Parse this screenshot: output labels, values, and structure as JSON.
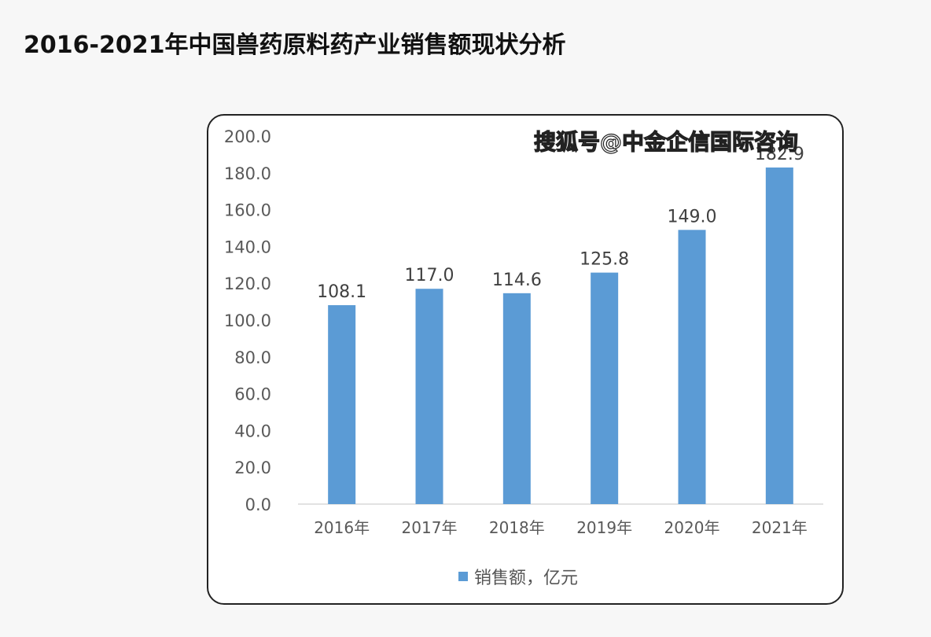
{
  "page": {
    "title": "2016-2021年中国兽药原料药产业销售额现状分析"
  },
  "watermark": "搜狐号@中金企信国际咨询",
  "colors": {
    "bar": "#5b9bd5",
    "axis": "#d9d9d9",
    "tick_text": "#595959",
    "label_text": "#404040"
  },
  "chart_data": {
    "type": "bar",
    "categories": [
      "2016年",
      "2017年",
      "2018年",
      "2019年",
      "2020年",
      "2021年"
    ],
    "series": [
      {
        "name": "销售额，亿元",
        "values": [
          108.1,
          117.0,
          114.6,
          125.8,
          149.0,
          182.9
        ]
      }
    ],
    "value_labels": [
      "108.1",
      "117.0",
      "114.6",
      "125.8",
      "149.0",
      "182.9"
    ],
    "yticks": [
      "0.0",
      "20.0",
      "40.0",
      "60.0",
      "80.0",
      "100.0",
      "120.0",
      "140.0",
      "160.0",
      "180.0",
      "200.0"
    ],
    "ylim": [
      0,
      200
    ],
    "grid": false,
    "legend_position": "bottom"
  }
}
